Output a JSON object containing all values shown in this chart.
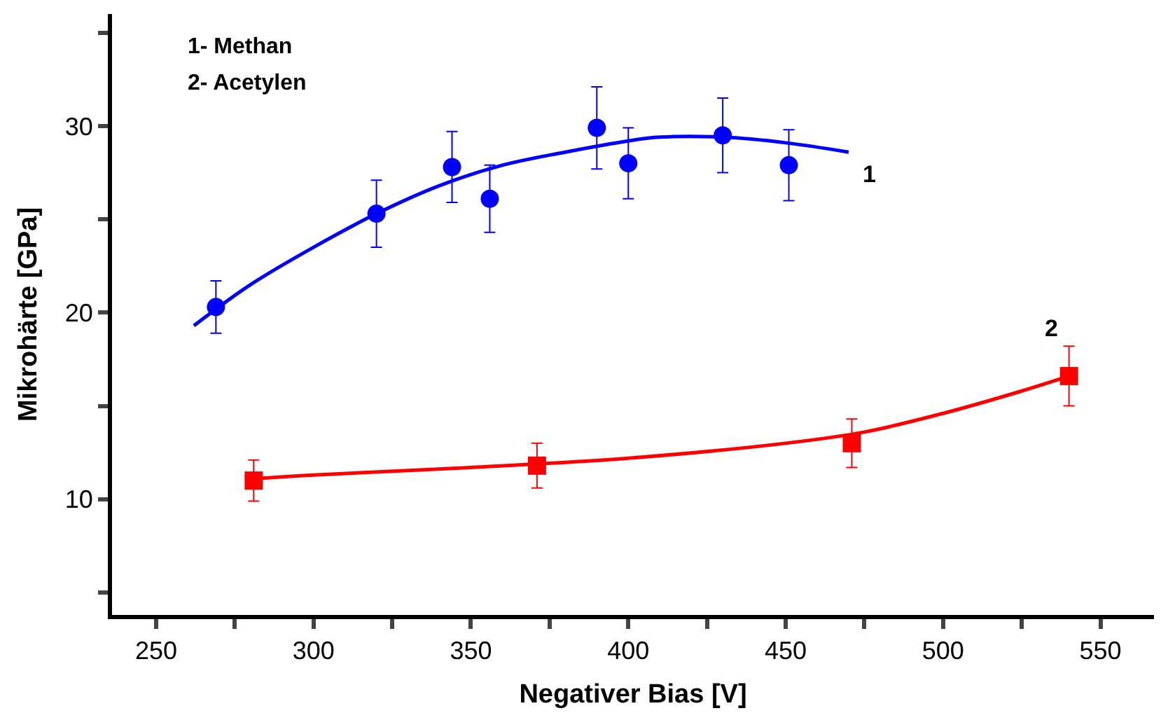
{
  "chart_data": {
    "type": "scatter",
    "xlabel": "Negativer Bias [V]",
    "ylabel": "Mikrohärte [GPa]",
    "xlim": [
      236,
      567
    ],
    "ylim": [
      3.8,
      36
    ],
    "xticks": [
      250,
      {
        "value": 275,
        "label": null
      },
      300,
      {
        "value": 325,
        "label": null
      },
      350,
      {
        "value": 375,
        "label": null
      },
      400,
      {
        "value": 425,
        "label": null
      },
      450,
      {
        "value": 475,
        "label": null
      },
      500,
      {
        "value": 525,
        "label": null
      },
      550
    ],
    "yticks": [
      {
        "value": 5,
        "label": null
      },
      10,
      {
        "value": 15,
        "label": null
      },
      20,
      {
        "value": 25,
        "label": null
      },
      30,
      {
        "value": 35,
        "label": null
      }
    ],
    "legend": false,
    "series": [
      {
        "color": "#0000ff",
        "marker": "circle",
        "x": [
          269,
          320,
          344,
          356,
          390,
          400,
          430,
          451
        ],
        "values": [
          20.3,
          25.3,
          27.8,
          26.1,
          29.9,
          28,
          29.5,
          27.9
        ],
        "errors": [
          1.4,
          1.8,
          1.9,
          1.8,
          2.2,
          1.9,
          2,
          1.9
        ]
      },
      {
        "type": "line",
        "name": "1",
        "color": "#0000ff",
        "marker": "none",
        "x": [
          262,
          280,
          300,
          320,
          340,
          360,
          380,
          400,
          410,
          430,
          450,
          470
        ],
        "values": [
          19.3,
          21.5,
          23.5,
          25.3,
          26.8,
          27.9,
          28.6,
          29.2,
          29.4,
          29.4,
          29.1,
          28.6
        ]
      },
      {
        "color": "#ff0000",
        "marker": "square",
        "x": [
          281,
          371,
          471,
          540
        ],
        "values": [
          11,
          11.8,
          13,
          16.6
        ],
        "errors": [
          1.1,
          1.2,
          1.3,
          1.6
        ]
      },
      {
        "type": "line",
        "name": "2",
        "color": "#ff0000",
        "marker": "none",
        "x": [
          281,
          300,
          350,
          400,
          450,
          475,
          500,
          525,
          540
        ],
        "values": [
          11.1,
          11.3,
          11.7,
          12.2,
          13,
          13.6,
          14.6,
          15.8,
          16.6
        ]
      }
    ],
    "annotations": [
      "1- Methan",
      "2- Acetylen"
    ]
  }
}
